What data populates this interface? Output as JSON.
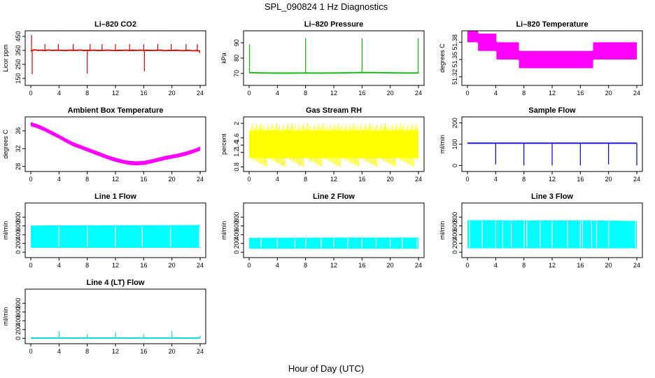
{
  "figure": {
    "title": "SPL_090824  1 Hz Diagnostics",
    "xlabel": "Hour of Day (UTC)"
  },
  "chart_data": [
    {
      "type": "line",
      "title": "Li–820 CO2",
      "ylabel": "Licor ppm",
      "color": "#e00000",
      "xlim": [
        0,
        24
      ],
      "ylim": [
        120,
        470
      ],
      "xticks": [
        0,
        4,
        8,
        12,
        16,
        20,
        24
      ],
      "yticks": [
        150,
        250,
        350,
        450
      ],
      "x": [
        0,
        0.5,
        1,
        1.5,
        2,
        2.5,
        3,
        3.5,
        4,
        4.5,
        5,
        5.5,
        6,
        6.5,
        7,
        7.5,
        8,
        8.5,
        9,
        9.5,
        10,
        10.5,
        11,
        11.5,
        12,
        12.5,
        13,
        13.5,
        14,
        14.5,
        15,
        15.5,
        16,
        16.5,
        17,
        17.5,
        18,
        18.5,
        19,
        19.5,
        20,
        20.5,
        21,
        21.5,
        22,
        22.5,
        23,
        23.5,
        24
      ],
      "y": [
        345,
        355,
        350,
        352,
        349,
        353,
        350,
        351,
        352,
        350,
        349,
        352,
        351,
        350,
        353,
        349,
        351,
        350,
        352,
        349,
        350,
        351,
        352,
        350,
        349,
        351,
        350,
        352,
        349,
        351,
        350,
        352,
        350,
        351,
        349,
        350,
        352,
        351,
        348,
        350,
        349,
        351,
        350,
        348,
        349,
        350,
        347,
        349,
        345
      ],
      "spikes_up": [
        [
          0.1,
          460
        ],
        [
          2.0,
          395
        ],
        [
          3.9,
          395
        ],
        [
          6.0,
          395
        ],
        [
          8.4,
          395
        ],
        [
          10.1,
          395
        ],
        [
          12.0,
          395
        ],
        [
          14.0,
          395
        ],
        [
          16.0,
          395
        ],
        [
          18.0,
          395
        ],
        [
          19.9,
          395
        ],
        [
          22.0,
          395
        ],
        [
          23.6,
          395
        ]
      ],
      "spikes_down": [
        [
          0.2,
          180
        ],
        [
          8.0,
          185
        ],
        [
          16.1,
          200
        ],
        [
          23.9,
          330
        ]
      ]
    },
    {
      "type": "line",
      "title": "Li–820 Pressure",
      "ylabel": "kPa",
      "color": "#00bb00",
      "xlim": [
        0,
        24
      ],
      "ylim": [
        64,
        96
      ],
      "xticks": [
        0,
        4,
        8,
        12,
        16,
        20,
        24
      ],
      "yticks": [
        70,
        80,
        90
      ],
      "x": [
        0,
        2,
        4,
        6,
        8,
        10,
        12,
        14,
        16,
        18,
        20,
        22,
        24
      ],
      "y": [
        70.5,
        70.3,
        70.2,
        70.2,
        70.3,
        70.2,
        70.3,
        70.4,
        70.6,
        70.5,
        70.4,
        70.3,
        70.3
      ],
      "spikes_up": [
        [
          0.05,
          89
        ],
        [
          8.0,
          93
        ],
        [
          16.0,
          93
        ],
        [
          23.95,
          93
        ]
      ]
    },
    {
      "type": "line",
      "title": "Li–820 Temperature",
      "ylabel": "degrees C",
      "color": "#ff00ff",
      "xlim": [
        0,
        24
      ],
      "ylim": [
        51.31,
        51.395
      ],
      "xticks": [
        0,
        4,
        8,
        12,
        16,
        20,
        24
      ],
      "yticks": [
        51.32,
        51.35,
        51.38
      ],
      "x": [
        0,
        1.5,
        1.5,
        4.1,
        4.1,
        7.3,
        7.3,
        17.8,
        17.8,
        24
      ],
      "y": [
        51.395,
        51.395,
        51.38,
        51.38,
        51.365,
        51.365,
        51.35,
        51.35,
        51.365,
        51.365
      ],
      "band": 0.015
    },
    {
      "type": "line",
      "title": "Ambient Box Temperature",
      "ylabel": "degrees C",
      "color": "#ff00ff",
      "xlim": [
        0,
        24
      ],
      "ylim": [
        27.5,
        38.5
      ],
      "xticks": [
        0,
        4,
        8,
        12,
        16,
        20,
        24
      ],
      "yticks": [
        28,
        32,
        36
      ],
      "x": [
        0,
        1,
        2,
        3,
        4,
        5,
        6,
        7,
        8,
        9,
        10,
        11,
        12,
        13,
        14,
        15,
        16,
        17,
        18,
        19,
        20,
        21,
        22,
        23,
        24
      ],
      "y": [
        37.5,
        37.0,
        36.3,
        35.5,
        34.7,
        33.8,
        33.0,
        32.4,
        31.8,
        31.2,
        30.6,
        30.0,
        29.5,
        29.1,
        28.8,
        28.7,
        28.8,
        29.1,
        29.5,
        29.9,
        30.2,
        30.5,
        30.9,
        31.4,
        32.0
      ],
      "band": 0.45
    },
    {
      "type": "area",
      "title": "Gas Stream RH",
      "ylabel": "percent",
      "color": "#ffff00",
      "xlim": [
        0,
        24
      ],
      "ylim": [
        0.75,
        2.1
      ],
      "xticks": [
        0,
        4,
        8,
        12,
        16,
        20,
        24
      ],
      "yticks": [
        0.8,
        1.2,
        1.4,
        1.6,
        2.0
      ],
      "x": [
        0,
        24
      ],
      "upper": [
        1.8,
        1.8
      ],
      "lower": [
        1.05,
        1.05
      ],
      "peak_max": 2.0,
      "trough_min": 0.8
    },
    {
      "type": "line",
      "title": "Sample Flow",
      "ylabel": "ml/min",
      "color": "#0000dd",
      "xlim": [
        0,
        24
      ],
      "ylim": [
        -15,
        215
      ],
      "xticks": [
        0,
        4,
        8,
        12,
        16,
        20,
        24
      ],
      "yticks": [
        0,
        100,
        200
      ],
      "x": [
        0,
        4,
        8,
        12,
        16,
        20,
        24
      ],
      "y": [
        105,
        105,
        105,
        105,
        105,
        105,
        105
      ],
      "dips": [
        [
          4.0,
          5
        ],
        [
          8.0,
          0
        ],
        [
          12.0,
          0
        ],
        [
          16.0,
          0
        ],
        [
          20.0,
          5
        ],
        [
          24.0,
          0
        ]
      ]
    },
    {
      "type": "area",
      "title": "Line 1 Flow",
      "ylabel": "ml/min",
      "color": "#00ffff",
      "xlim": [
        0,
        24
      ],
      "ylim": [
        -60,
        1060
      ],
      "xticks": [
        0,
        4,
        8,
        12,
        16,
        20,
        24
      ],
      "yticks": [
        0,
        200,
        400,
        600,
        800
      ],
      "x": [
        0,
        24
      ],
      "upper": [
        610,
        620
      ],
      "lower": [
        100,
        100
      ],
      "gaps": [
        4.0,
        8.0,
        12.0,
        15.8,
        19.8,
        23.9
      ]
    },
    {
      "type": "area",
      "title": "Line 2 Flow",
      "ylabel": "ml/min",
      "color": "#00ffff",
      "xlim": [
        0,
        24
      ],
      "ylim": [
        -60,
        1060
      ],
      "xticks": [
        0,
        4,
        8,
        12,
        16,
        20,
        24
      ],
      "yticks": [
        0,
        200,
        400,
        600,
        800
      ],
      "x": [
        0,
        24
      ],
      "upper": [
        330,
        335
      ],
      "lower": [
        80,
        80
      ],
      "gaps": [
        1.7,
        4.0,
        6.5,
        8.0,
        10.2,
        12.0,
        14.0,
        16.0,
        18.0,
        20.0,
        21.7,
        23.8
      ]
    },
    {
      "type": "area",
      "title": "Line 3 Flow",
      "ylabel": "ml/min",
      "color": "#00ffff",
      "xlim": [
        0,
        24
      ],
      "ylim": [
        -60,
        1060
      ],
      "xticks": [
        0,
        4,
        8,
        12,
        16,
        20,
        24
      ],
      "yticks": [
        0,
        200,
        400,
        600,
        800
      ],
      "x": [
        0,
        24
      ],
      "upper": [
        730,
        720
      ],
      "lower": [
        90,
        90
      ],
      "gaps": [
        0.3,
        2.1,
        4.0,
        5.0,
        6.2,
        8.0,
        8.4,
        10.3,
        12.0,
        14.2,
        16.0,
        16.3,
        17.6,
        18.3,
        20.0,
        23.8
      ]
    },
    {
      "type": "line",
      "title": "Line 4 (LT) Flow",
      "ylabel": "ml/min",
      "color": "#00dddd",
      "xlim": [
        0,
        24
      ],
      "ylim": [
        -60,
        1060
      ],
      "xticks": [
        0,
        4,
        8,
        12,
        16,
        20,
        24
      ],
      "yticks": [
        0,
        200,
        400,
        600,
        800
      ],
      "x": [
        0,
        24
      ],
      "y": [
        5,
        5
      ],
      "spikes_up": [
        [
          4.0,
          160
        ],
        [
          8.0,
          90
        ],
        [
          12.0,
          140
        ],
        [
          16.0,
          90
        ],
        [
          20.0,
          160
        ],
        [
          24.0,
          60
        ]
      ]
    }
  ]
}
